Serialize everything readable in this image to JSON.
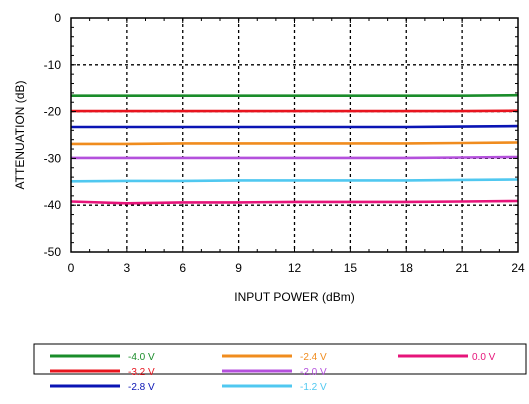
{
  "chart_data": {
    "type": "line",
    "title": "",
    "xlabel": "INPUT POWER (dBm)",
    "ylabel": "ATTENUATION (dB)",
    "xlim": [
      0,
      24
    ],
    "ylim": [
      -50,
      0
    ],
    "xticks": [
      0,
      3,
      6,
      9,
      12,
      15,
      18,
      21,
      24
    ],
    "yticks": [
      0,
      -10,
      -20,
      -30,
      -40,
      -50
    ],
    "grid": true,
    "legend_position": "bottom",
    "x": [
      0,
      3,
      6,
      9,
      12,
      15,
      18,
      21,
      24
    ],
    "series": [
      {
        "name": "-4.0 V",
        "color": "#1a8c2a",
        "values": [
          -16.6,
          -16.6,
          -16.6,
          -16.6,
          -16.6,
          -16.6,
          -16.6,
          -16.6,
          -16.5
        ]
      },
      {
        "name": "-3.2 V",
        "color": "#e8141e",
        "values": [
          -19.9,
          -19.9,
          -19.9,
          -19.9,
          -19.9,
          -19.9,
          -19.9,
          -19.9,
          -19.8
        ]
      },
      {
        "name": "-2.8 V",
        "color": "#0a14b4",
        "values": [
          -23.3,
          -23.3,
          -23.3,
          -23.3,
          -23.3,
          -23.3,
          -23.3,
          -23.2,
          -23.1
        ]
      },
      {
        "name": "-2.4 V",
        "color": "#f08c1e",
        "values": [
          -26.9,
          -26.9,
          -26.8,
          -26.8,
          -26.8,
          -26.8,
          -26.8,
          -26.7,
          -26.6
        ]
      },
      {
        "name": "-2.0 V",
        "color": "#b450dc",
        "values": [
          -29.9,
          -29.9,
          -29.9,
          -29.9,
          -29.9,
          -29.9,
          -29.9,
          -29.8,
          -29.7
        ]
      },
      {
        "name": "-1.2 V",
        "color": "#50c8f0",
        "values": [
          -34.9,
          -34.8,
          -34.8,
          -34.7,
          -34.7,
          -34.7,
          -34.7,
          -34.6,
          -34.5
        ]
      },
      {
        "name": "0.0 V",
        "color": "#e6147a",
        "values": [
          -39.2,
          -39.6,
          -39.4,
          -39.4,
          -39.3,
          -39.3,
          -39.3,
          -39.2,
          -39.1
        ]
      }
    ]
  }
}
